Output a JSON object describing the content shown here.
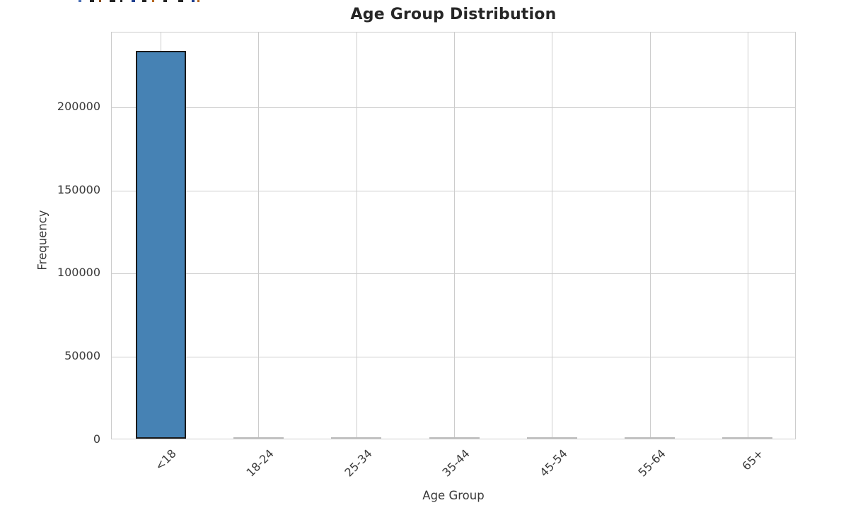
{
  "chart_data": {
    "type": "bar",
    "title": "Age Group Distribution",
    "xlabel": "Age Group",
    "ylabel": "Frequency",
    "categories": [
      "<18",
      "18-24",
      "25-34",
      "35-44",
      "45-54",
      "55-64",
      "65+"
    ],
    "values": [
      233000,
      600,
      600,
      600,
      600,
      600,
      600
    ],
    "yticks": [
      0,
      50000,
      100000,
      150000,
      200000
    ],
    "ylim": [
      0,
      245000
    ],
    "grid": true,
    "legend": "none",
    "x_tick_rotation": 45,
    "bar_color": "#4682b4",
    "bar_edge_color": "#1a1a1a",
    "small_bar_color": "#bdbdbd",
    "grid_color": "#cccccc",
    "tick_label_color": "#3a3a3a",
    "title_color": "#262626"
  },
  "clipped_top_text": {
    "note": "bottom slivers of a cut-off text line at the top edge",
    "marks": [
      {
        "x": 111,
        "w": 4,
        "color": "#4a6fb5"
      },
      {
        "x": 127,
        "w": 6,
        "color": "#222222"
      },
      {
        "x": 140,
        "w": 3,
        "color": "#8a4a10"
      },
      {
        "x": 155,
        "w": 8,
        "color": "#222222"
      },
      {
        "x": 170,
        "w": 3,
        "color": "#222222"
      },
      {
        "x": 186,
        "w": 5,
        "color": "#1f3f8f"
      },
      {
        "x": 201,
        "w": 6,
        "color": "#222222"
      },
      {
        "x": 215,
        "w": 3,
        "color": "#b5651d"
      },
      {
        "x": 231,
        "w": 5,
        "color": "#222222"
      },
      {
        "x": 252,
        "w": 7,
        "color": "#222222"
      },
      {
        "x": 271,
        "w": 4,
        "color": "#1f3f8f"
      },
      {
        "x": 279,
        "w": 3,
        "color": "#b5651d"
      }
    ]
  }
}
